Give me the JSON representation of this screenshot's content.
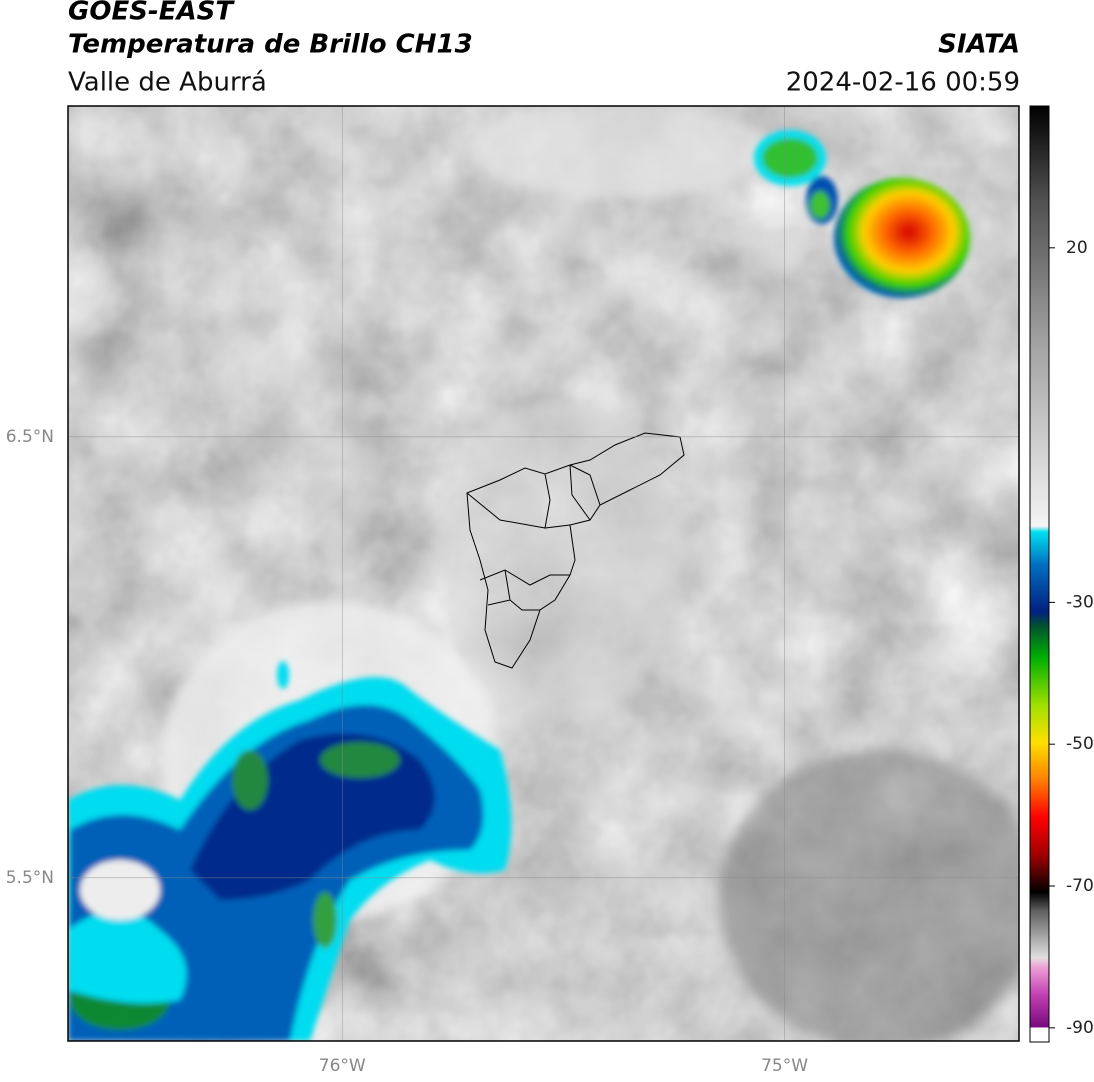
{
  "chart_data": {
    "type": "map",
    "title": "GOES-EAST",
    "subtitle": "Temperatura de Brillo CH13",
    "region": "Valle de Aburrá",
    "source": "SIATA",
    "datetime": "2024-02-16 00:59",
    "xlim": [
      -76.62,
      -74.47
    ],
    "ylim": [
      5.13,
      7.25
    ],
    "xticks": [
      {
        "value": -76,
        "label": "76°W"
      },
      {
        "value": -75,
        "label": "75°W"
      }
    ],
    "yticks": [
      {
        "value": 6.5,
        "label": "6.5°N"
      },
      {
        "value": 5.5,
        "label": "5.5°N"
      }
    ],
    "grid": true,
    "colorbar": {
      "lim": [
        -92,
        40
      ],
      "ticks": [
        20,
        -30,
        -50,
        -70,
        -90
      ]
    }
  }
}
